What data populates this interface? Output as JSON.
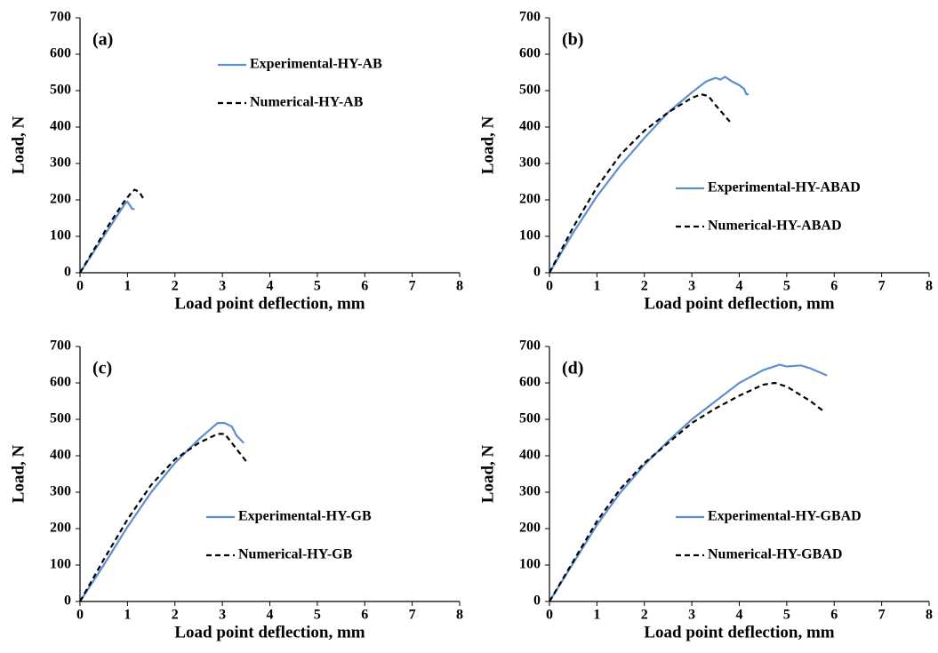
{
  "chart_data": [
    {
      "type": "line",
      "label": "(a)",
      "x_label": "Load point deflection, mm",
      "y_label": "Load, N",
      "xlim": [
        0,
        8
      ],
      "ylim": [
        0,
        700
      ],
      "xticks": [
        0,
        1,
        2,
        3,
        4,
        5,
        6,
        7,
        8
      ],
      "yticks": [
        0,
        100,
        200,
        300,
        400,
        500,
        600,
        700
      ],
      "legend": "upper right",
      "series": [
        {
          "name": "Experimental-HY-AB",
          "color": "#5b8fd0",
          "dashed": false,
          "x": [
            0,
            0.2,
            0.4,
            0.6,
            0.8,
            0.95,
            1.0,
            1.05,
            1.1,
            1.15
          ],
          "values": [
            0,
            40,
            80,
            120,
            160,
            190,
            195,
            185,
            175,
            175
          ]
        },
        {
          "name": "Numerical-HY-AB",
          "color": "#000000",
          "dashed": true,
          "x": [
            0,
            0.3,
            0.6,
            0.9,
            1.05,
            1.15,
            1.25,
            1.35
          ],
          "values": [
            0,
            65,
            130,
            190,
            215,
            228,
            222,
            200
          ]
        }
      ]
    },
    {
      "type": "line",
      "label": "(b)",
      "x_label": "Load point deflection, mm",
      "y_label": "Load, N",
      "xlim": [
        0,
        8
      ],
      "ylim": [
        0,
        700
      ],
      "xticks": [
        0,
        1,
        2,
        3,
        4,
        5,
        6,
        7,
        8
      ],
      "yticks": [
        0,
        100,
        200,
        300,
        400,
        500,
        600,
        700
      ],
      "legend": "lower right",
      "series": [
        {
          "name": "Experimental-HY-ABAD",
          "color": "#5b8fd0",
          "dashed": false,
          "x": [
            0,
            0.5,
            1,
            1.5,
            2,
            2.5,
            3,
            3.3,
            3.5,
            3.6,
            3.7,
            3.85,
            4,
            4.1,
            4.15,
            4.2
          ],
          "values": [
            0,
            110,
            210,
            295,
            370,
            440,
            495,
            525,
            535,
            530,
            538,
            525,
            515,
            505,
            490,
            490
          ]
        },
        {
          "name": "Numerical-HY-ABAD",
          "color": "#000000",
          "dashed": true,
          "x": [
            0,
            0.5,
            1,
            1.5,
            2,
            2.5,
            3,
            3.2,
            3.35,
            3.5,
            3.8
          ],
          "values": [
            0,
            125,
            235,
            325,
            390,
            440,
            480,
            490,
            485,
            460,
            415
          ]
        }
      ]
    },
    {
      "type": "line",
      "label": "(c)",
      "x_label": "Load point deflection, mm",
      "y_label": "Load, N",
      "xlim": [
        0,
        8
      ],
      "ylim": [
        0,
        700
      ],
      "xticks": [
        0,
        1,
        2,
        3,
        4,
        5,
        6,
        7,
        8
      ],
      "yticks": [
        0,
        100,
        200,
        300,
        400,
        500,
        600,
        700
      ],
      "legend": "lower right",
      "series": [
        {
          "name": "Experimental-HY-GB",
          "color": "#5b8fd0",
          "dashed": false,
          "x": [
            0,
            0.5,
            1,
            1.5,
            2,
            2.5,
            2.9,
            3.05,
            3.2,
            3.3,
            3.45
          ],
          "values": [
            0,
            100,
            205,
            300,
            380,
            445,
            490,
            490,
            480,
            455,
            435
          ]
        },
        {
          "name": "Numerical-HY-GB",
          "color": "#000000",
          "dashed": true,
          "x": [
            0,
            0.5,
            1,
            1.5,
            2,
            2.5,
            2.9,
            3.05,
            3.2,
            3.35,
            3.5
          ],
          "values": [
            0,
            115,
            225,
            320,
            390,
            435,
            460,
            460,
            435,
            410,
            385
          ]
        }
      ]
    },
    {
      "type": "line",
      "label": "(d)",
      "x_label": "Load point deflection, mm",
      "y_label": "Load, N",
      "xlim": [
        0,
        8
      ],
      "ylim": [
        0,
        700
      ],
      "xticks": [
        0,
        1,
        2,
        3,
        4,
        5,
        6,
        7,
        8
      ],
      "yticks": [
        0,
        100,
        200,
        300,
        400,
        500,
        600,
        700
      ],
      "legend": "lower right",
      "series": [
        {
          "name": "Experimental-HY-GBAD",
          "color": "#5b8fd0",
          "dashed": false,
          "x": [
            0,
            0.5,
            1,
            1.5,
            2,
            2.5,
            3,
            3.5,
            4,
            4.5,
            4.85,
            5,
            5.3,
            5.5,
            5.85
          ],
          "values": [
            0,
            105,
            210,
            300,
            375,
            440,
            500,
            550,
            600,
            635,
            650,
            645,
            648,
            640,
            620
          ]
        },
        {
          "name": "Numerical-HY-GBAD",
          "color": "#000000",
          "dashed": true,
          "x": [
            0,
            0.5,
            1,
            1.5,
            2,
            2.5,
            3,
            3.5,
            4,
            4.5,
            4.75,
            5,
            5.5,
            5.8
          ],
          "values": [
            0,
            110,
            220,
            310,
            380,
            435,
            490,
            530,
            565,
            595,
            600,
            590,
            550,
            520
          ]
        }
      ]
    }
  ]
}
